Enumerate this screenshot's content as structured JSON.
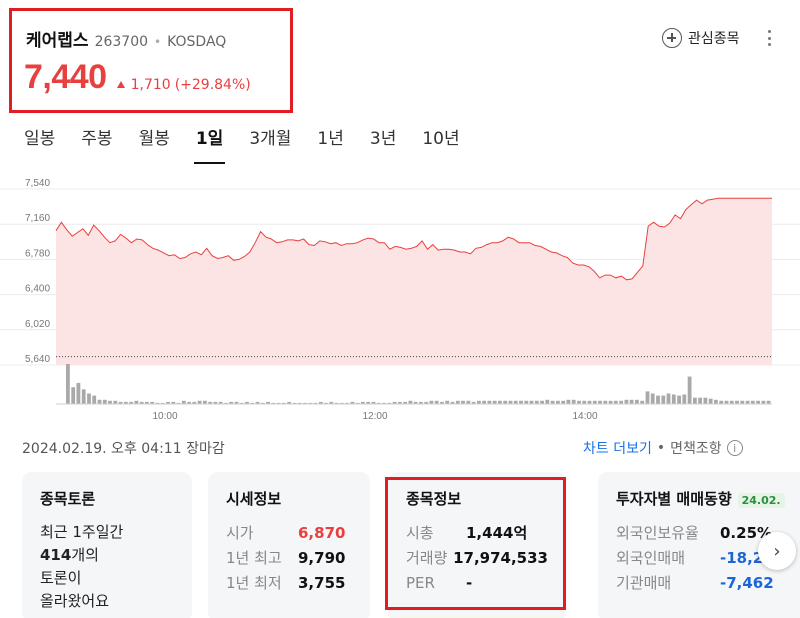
{
  "header": {
    "name": "케어랩스",
    "code": "263700",
    "separator": "•",
    "market": "KOSDAQ",
    "price": "7,440",
    "change": "1,710",
    "change_pct": "(+29.84%)",
    "favorite_label": "관심종목"
  },
  "tabs": [
    {
      "label": "일봉"
    },
    {
      "label": "주봉"
    },
    {
      "label": "월봉"
    },
    {
      "label": "1일",
      "active": true
    },
    {
      "label": "3개월"
    },
    {
      "label": "1년"
    },
    {
      "label": "3년"
    },
    {
      "label": "10년"
    }
  ],
  "chart_data": {
    "type": "area",
    "y_ticks": [
      "7,540",
      "7,160",
      "6,780",
      "6,400",
      "6,020",
      "5,640"
    ],
    "x_ticks": [
      "10:00",
      "12:00",
      "14:00"
    ],
    "ylim": [
      5640,
      7540
    ],
    "prev_close": 5730,
    "price_series": [
      7090,
      7180,
      7100,
      7030,
      7070,
      7110,
      7040,
      7150,
      7090,
      7020,
      6960,
      6980,
      7050,
      7010,
      6960,
      7000,
      6990,
      6940,
      6900,
      6880,
      6850,
      6820,
      6830,
      6790,
      6800,
      6840,
      6860,
      6830,
      6900,
      6820,
      6790,
      6800,
      6820,
      6770,
      6780,
      6810,
      6860,
      6960,
      7080,
      7020,
      7000,
      6960,
      6970,
      6990,
      6990,
      6980,
      7000,
      6940,
      6930,
      6980,
      6970,
      6950,
      6960,
      6930,
      6950,
      6950,
      6960,
      6990,
      7010,
      7000,
      6960,
      6960,
      6890,
      6920,
      6910,
      6890,
      6900,
      6920,
      6980,
      6890,
      6940,
      6880,
      6890,
      6890,
      6880,
      6860,
      6860,
      6840,
      6900,
      6910,
      6940,
      6960,
      6960,
      6980,
      7020,
      7000,
      6960,
      6960,
      6960,
      6930,
      6920,
      6890,
      6860,
      6850,
      6820,
      6800,
      6740,
      6720,
      6720,
      6700,
      6650,
      6580,
      6610,
      6610,
      6580,
      6600,
      6560,
      6570,
      6640,
      6710,
      7140,
      7180,
      7140,
      7130,
      7170,
      7260,
      7220,
      7320,
      7370,
      7420,
      7380,
      7420,
      7430,
      7440,
      7440,
      7440,
      7440,
      7440,
      7440,
      7440,
      7440,
      7440,
      7440,
      7440
    ],
    "volume_series": [
      38,
      16,
      20,
      14,
      10,
      8,
      4,
      4,
      3,
      3,
      2,
      2,
      2,
      3,
      2,
      2,
      2,
      1,
      1,
      2,
      2,
      1,
      3,
      2,
      2,
      3,
      3,
      2,
      2,
      2,
      1,
      2,
      2,
      1,
      2,
      1,
      2,
      1,
      2,
      1,
      1,
      1,
      2,
      1,
      1,
      1,
      1,
      1,
      2,
      1,
      2,
      1,
      1,
      1,
      2,
      1,
      2,
      2,
      2,
      1,
      1,
      1,
      2,
      2,
      2,
      3,
      2,
      2,
      2,
      3,
      3,
      2,
      3,
      2,
      3,
      3,
      3,
      2,
      3,
      3,
      3,
      3,
      3,
      3,
      3,
      3,
      3,
      3,
      3,
      3,
      3,
      4,
      3,
      3,
      3,
      4,
      4,
      3,
      3,
      3,
      3,
      3,
      3,
      3,
      3,
      3,
      4,
      4,
      4,
      3,
      12,
      10,
      8,
      8,
      10,
      9,
      8,
      9,
      26,
      6,
      6,
      6,
      5,
      4,
      3,
      3,
      3,
      3,
      3,
      3,
      3,
      3,
      3,
      3
    ],
    "line_color": "#e8403f",
    "fill_color": "#fde4e4",
    "volume_color": "#a9a9a9"
  },
  "meta": {
    "date": "2024.02.19. 오후 04:11 장마감",
    "more_chart": "차트 더보기",
    "dot": "•",
    "disclaimer": "면책조항",
    "info_glyph": "i"
  },
  "cards": {
    "discussion": {
      "title": "종목토론",
      "line1": "최근 1주일간",
      "count": "414",
      "line2_suffix": "개의",
      "line3": "토론이",
      "line4": "올라왔어요"
    },
    "quote": {
      "title": "시세정보",
      "rows": [
        {
          "label": "시가",
          "value": "6,870"
        },
        {
          "label": "1년 최고",
          "value": "9,790"
        },
        {
          "label": "1년 최저",
          "value": "3,755"
        }
      ]
    },
    "stock": {
      "title": "종목정보",
      "rows": [
        {
          "label": "시총",
          "value": "1,444억"
        },
        {
          "label": "거래량",
          "value": "17,974,533"
        },
        {
          "label": "PER",
          "value": "-"
        }
      ]
    },
    "investor": {
      "title": "투자자별 매매동향",
      "badge": "24.02.",
      "rows": [
        {
          "label": "외국인보유율",
          "value": "0.25%"
        },
        {
          "label": "외국인매매",
          "value": "-18,2"
        },
        {
          "label": "기관매매",
          "value": "-7,462"
        }
      ]
    }
  },
  "nav": {
    "next_glyph": "›"
  }
}
